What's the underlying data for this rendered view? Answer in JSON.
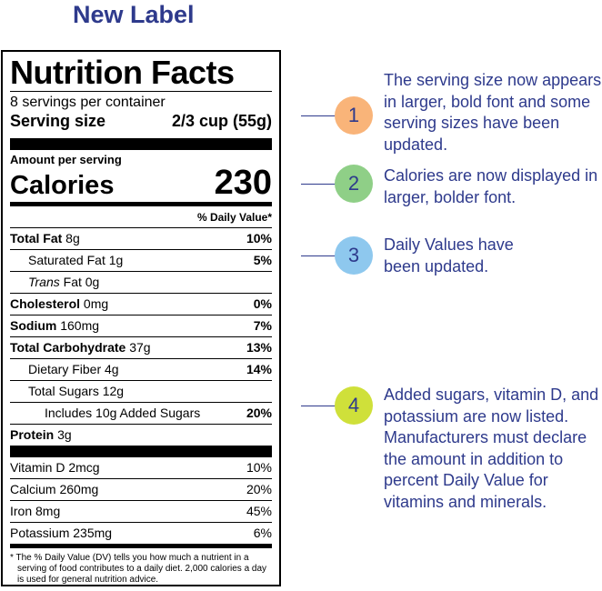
{
  "page": {
    "title": "New Label"
  },
  "label": {
    "title": "Nutrition Facts",
    "servings_per_container": "8 servings per container",
    "serving_size_label": "Serving size",
    "serving_size_value": "2/3 cup (55g)",
    "amount_per_serving": "Amount per serving",
    "calories_label": "Calories",
    "calories_value": "230",
    "dv_header": "% Daily Value*",
    "nutrients": [
      {
        "bold_name": "Total Fat",
        "plain": " 8g",
        "percent": "10%"
      },
      {
        "bold_name": "",
        "plain": "Saturated Fat 1g",
        "percent": "5%"
      },
      {
        "italic": "Trans",
        "plain": " Fat 0g",
        "percent": ""
      },
      {
        "bold_name": "Cholesterol",
        "plain": " 0mg",
        "percent": "0%"
      },
      {
        "bold_name": "Sodium",
        "plain": " 160mg",
        "percent": "7%"
      },
      {
        "bold_name": "Total Carbohydrate",
        "plain": " 37g",
        "percent": "13%"
      },
      {
        "bold_name": "",
        "plain": "Dietary Fiber 4g",
        "percent": "14%"
      },
      {
        "bold_name": "",
        "plain": "Total Sugars 12g",
        "percent": ""
      },
      {
        "bold_name": "",
        "plain": "Includes 10g Added Sugars",
        "percent": "20%"
      },
      {
        "bold_name": "Protein",
        "plain": " 3g",
        "percent": ""
      }
    ],
    "vitamins": [
      {
        "name": "Vitamin D 2mcg",
        "percent": "10%"
      },
      {
        "name": "Calcium 260mg",
        "percent": "20%"
      },
      {
        "name": "Iron 8mg",
        "percent": "45%"
      },
      {
        "name": "Potassium 235mg",
        "percent": "6%"
      }
    ],
    "footnote": "* The % Daily Value (DV) tells you how much a nutrient in a serving of food contributes to a daily diet. 2,000 calories a day is used for general nutrition advice."
  },
  "callouts": [
    {
      "number": "1",
      "color": "#f9b479",
      "text": "The serving size now appears in larger, bold font and some serving sizes have been updated."
    },
    {
      "number": "2",
      "color": "#8fcf87",
      "text": "Calories are now displayed in larger, bolder font."
    },
    {
      "number": "3",
      "color": "#8ec8ee",
      "text": "Daily Values have been updated."
    },
    {
      "number": "4",
      "color": "#cfe03a",
      "text": "Added sugars, vitamin D, and potassium are now listed. Manufacturers must declare the amount in addition to percent Daily Value for vitamins and minerals."
    }
  ],
  "colors": {
    "accent": "#2e3a8c",
    "text": "#000000"
  }
}
